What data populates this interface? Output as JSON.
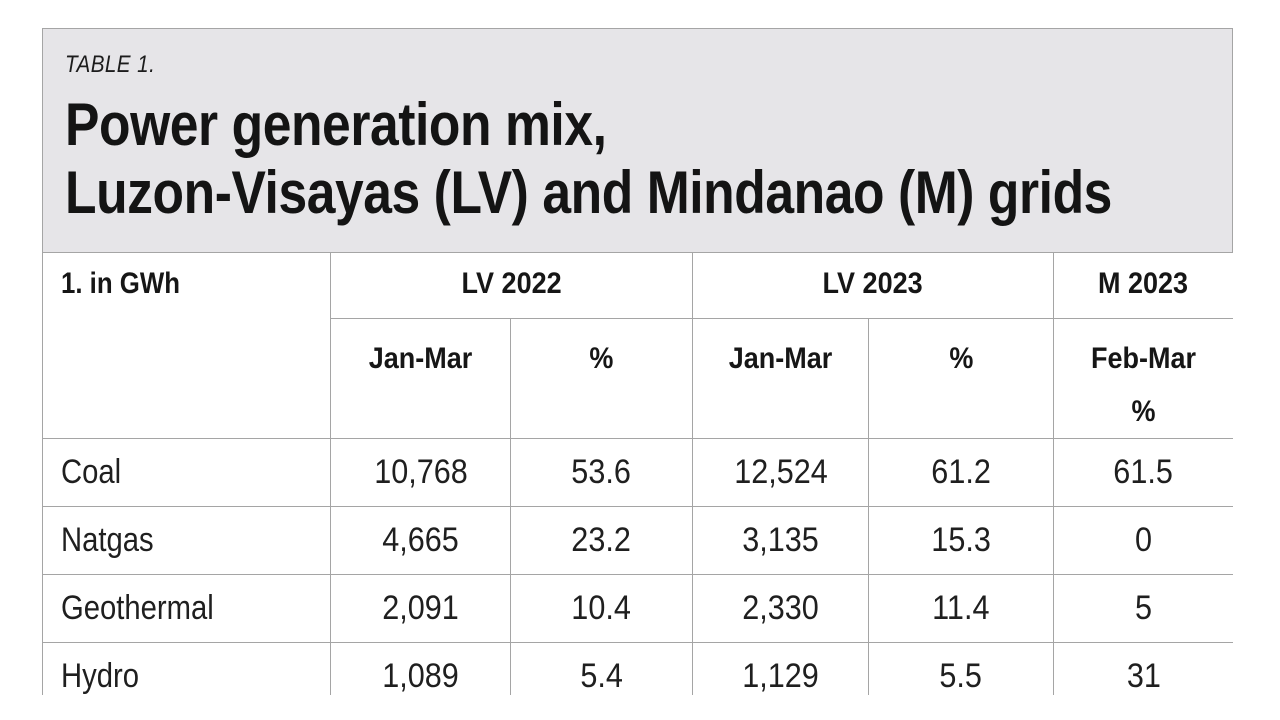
{
  "title_block": {
    "table_label": "TABLE 1.",
    "title_line1": "Power generation mix,",
    "title_line2": "Luzon-Visayas (LV) and Mindanao (M) grids"
  },
  "table": {
    "unit_header": "1. in GWh",
    "groups": [
      {
        "label": "LV 2022",
        "sub": [
          "Jan-Mar",
          "%"
        ]
      },
      {
        "label": "LV 2023",
        "sub": [
          "Jan-Mar",
          "%"
        ]
      },
      {
        "label": "M 2023",
        "sub": [
          "Feb-Mar",
          "%"
        ]
      }
    ],
    "rows": [
      {
        "label": "Coal",
        "values": [
          "10,768",
          "53.6",
          "12,524",
          "61.2",
          "61.5"
        ]
      },
      {
        "label": "Natgas",
        "values": [
          "4,665",
          "23.2",
          "3,135",
          "15.3",
          "0"
        ]
      },
      {
        "label": "Geothermal",
        "values": [
          "2,091",
          "10.4",
          "2,330",
          "11.4",
          "5"
        ]
      },
      {
        "label": "Hydro",
        "values": [
          "1,089",
          "5.4",
          "1,129",
          "5.5",
          "31"
        ]
      }
    ]
  },
  "chart_data": {
    "type": "table",
    "title": "Power generation mix, Luzon-Visayas (LV) and Mindanao (M) grids",
    "table_label": "TABLE 1.",
    "unit": "GWh",
    "columns": [
      "1. in GWh",
      "LV 2022 Jan-Mar",
      "LV 2022 %",
      "LV 2023 Jan-Mar",
      "LV 2023 %",
      "M 2023 Feb-Mar %"
    ],
    "rows": [
      [
        "Coal",
        10768,
        53.6,
        12524,
        61.2,
        61.5
      ],
      [
        "Natgas",
        4665,
        23.2,
        3135,
        15.3,
        0
      ],
      [
        "Geothermal",
        2091,
        10.4,
        2330,
        11.4,
        5
      ],
      [
        "Hydro",
        1089,
        5.4,
        1129,
        5.5,
        31
      ]
    ]
  },
  "colors": {
    "panel_bg": "#e6e5e8",
    "border": "#a5a5a5",
    "text": "#1a1a1a",
    "page_bg": "#ffffff"
  }
}
